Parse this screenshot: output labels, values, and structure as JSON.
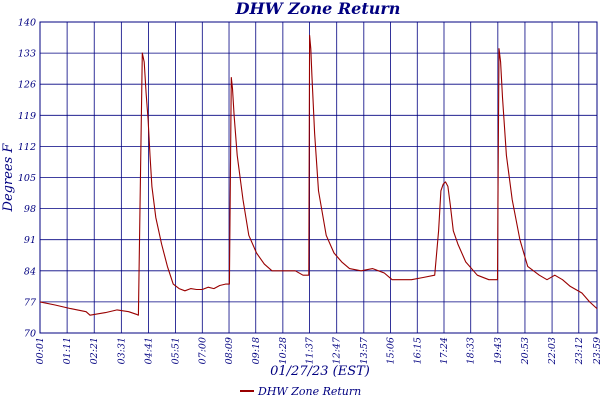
{
  "chart_data": {
    "type": "line",
    "title": "DHW Zone Return",
    "xlabel": "01/27/23 (EST)",
    "ylabel": "Degrees F",
    "ylim": [
      70,
      140
    ],
    "yticks": [
      70,
      77,
      84,
      91,
      98,
      105,
      112,
      119,
      126,
      133,
      140
    ],
    "xlim": [
      1,
      1439
    ],
    "xtick_labels": [
      "00:01",
      "01:11",
      "02:21",
      "03:31",
      "04:41",
      "05:51",
      "07:00",
      "08:09",
      "09:18",
      "10:28",
      "11:37",
      "12:47",
      "13:57",
      "15:06",
      "16:15",
      "17:24",
      "18:33",
      "19:43",
      "20:53",
      "22:03",
      "23:12",
      "23:59"
    ],
    "xtick_values": [
      1,
      71,
      141,
      211,
      281,
      351,
      420,
      489,
      558,
      628,
      697,
      767,
      837,
      906,
      975,
      1044,
      1113,
      1183,
      1253,
      1323,
      1392,
      1439
    ],
    "grid": true,
    "legend_position": "bottom",
    "colors": {
      "series": "#990000",
      "axis": "#000080"
    },
    "series": [
      {
        "name": "DHW Zone Return",
        "x": [
          1,
          40,
          80,
          120,
          130,
          170,
          200,
          230,
          250,
          255,
          265,
          270,
          275,
          280,
          285,
          290,
          300,
          315,
          330,
          345,
          360,
          375,
          390,
          405,
          420,
          435,
          450,
          465,
          480,
          490,
          495,
          498,
          502,
          510,
          525,
          540,
          560,
          580,
          600,
          620,
          640,
          660,
          680,
          695,
          697,
          700,
          703,
          710,
          720,
          740,
          760,
          780,
          800,
          830,
          860,
          890,
          910,
          935,
          960,
          990,
          1020,
          1030,
          1036,
          1042,
          1048,
          1054,
          1060,
          1068,
          1080,
          1100,
          1130,
          1160,
          1182,
          1184,
          1186,
          1190,
          1195,
          1205,
          1220,
          1240,
          1260,
          1290,
          1310,
          1330,
          1350,
          1370,
          1400,
          1420,
          1439
        ],
        "y": [
          77,
          76.3,
          75.5,
          74.8,
          74,
          74.6,
          75.2,
          74.8,
          74.2,
          74,
          133,
          131,
          124,
          118,
          110,
          103,
          96,
          90,
          85,
          81,
          80,
          79.5,
          80,
          79.8,
          79.8,
          80.3,
          80,
          80.7,
          81,
          81,
          127.5,
          125,
          119,
          110,
          100,
          92,
          88,
          85.5,
          84,
          84,
          84,
          84,
          83,
          83,
          137,
          134,
          128,
          115,
          102,
          92,
          88,
          86,
          84.5,
          84,
          84.5,
          83.5,
          82,
          82,
          82,
          82.5,
          83,
          93,
          102,
          103.5,
          104,
          103,
          99,
          93,
          90,
          86,
          83,
          82,
          82,
          108,
          134,
          131,
          123,
          110,
          100,
          91,
          85,
          83,
          82,
          83,
          82,
          80.5,
          79,
          77,
          75.5
        ]
      }
    ]
  }
}
